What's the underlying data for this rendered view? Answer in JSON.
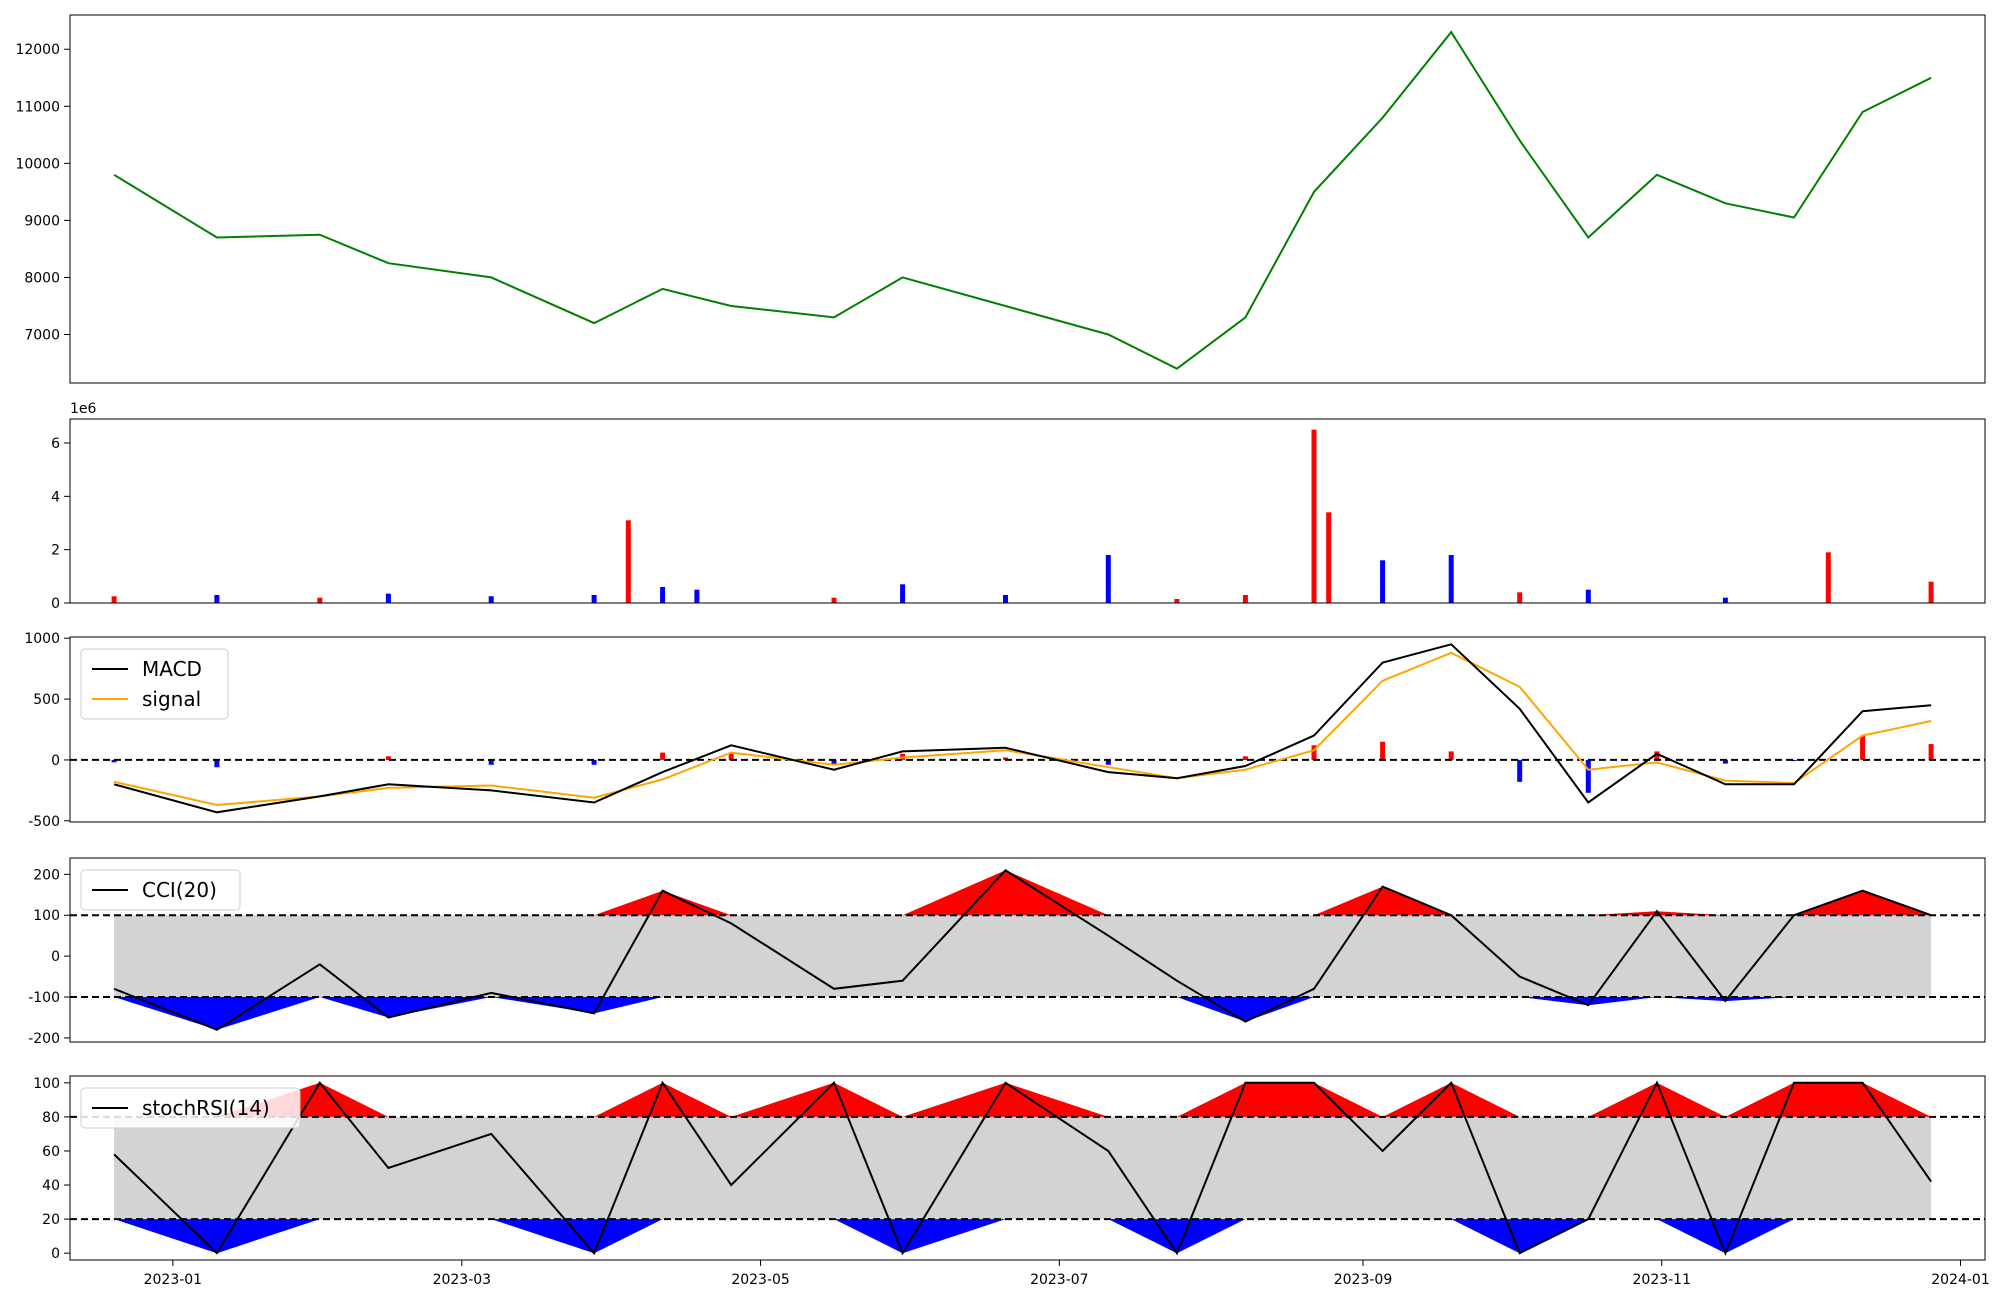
{
  "x_ticks": [
    "2023-01",
    "2023-03",
    "2023-05",
    "2023-07",
    "2023-09",
    "2023-11",
    "2024-01"
  ],
  "colors": {
    "up": "#ff0000",
    "down": "#0000ff",
    "price": "#008000",
    "signal": "#ffa500",
    "band": "#d3d3d3"
  },
  "chart_data": [
    {
      "type": "line",
      "panel": "price",
      "ylim": [
        6150,
        12600
      ],
      "yticks": [
        "7000",
        "8000",
        "9000",
        "10000",
        "11000",
        "12000"
      ],
      "x": [
        "2022-12-20",
        "2023-01-10",
        "2023-01-31",
        "2023-02-14",
        "2023-03-07",
        "2023-03-28",
        "2023-04-11",
        "2023-04-25",
        "2023-05-16",
        "2023-05-30",
        "2023-06-20",
        "2023-07-11",
        "2023-07-25",
        "2023-08-08",
        "2023-08-22",
        "2023-09-05",
        "2023-09-19",
        "2023-10-03",
        "2023-10-17",
        "2023-10-31",
        "2023-11-14",
        "2023-11-28",
        "2023-12-12",
        "2023-12-26"
      ],
      "values": [
        9800,
        8700,
        8750,
        8250,
        8000,
        7200,
        7800,
        7500,
        7300,
        8000,
        7500,
        7000,
        6400,
        7300,
        9500,
        10800,
        12300,
        10400,
        8700,
        9800,
        9300,
        9050,
        10900,
        11500
      ]
    },
    {
      "type": "bar",
      "panel": "volume",
      "exponent_label": "1e6",
      "ylim": [
        0,
        6.9
      ],
      "yticks": [
        "0",
        "2",
        "4",
        "6"
      ],
      "x": [
        "2022-12-20",
        "2023-01-10",
        "2023-01-31",
        "2023-02-14",
        "2023-03-07",
        "2023-03-28",
        "2023-04-04",
        "2023-04-11",
        "2023-04-18",
        "2023-05-16",
        "2023-05-30",
        "2023-06-20",
        "2023-07-11",
        "2023-07-25",
        "2023-08-08",
        "2023-08-22",
        "2023-08-25",
        "2023-09-05",
        "2023-09-19",
        "2023-10-03",
        "2023-10-17",
        "2023-11-14",
        "2023-12-05",
        "2023-12-26"
      ],
      "values": [
        0.25,
        0.3,
        0.2,
        0.35,
        0.25,
        0.3,
        3.1,
        0.6,
        0.5,
        0.2,
        0.7,
        0.3,
        1.8,
        0.15,
        0.3,
        6.5,
        3.4,
        1.6,
        1.8,
        0.4,
        0.5,
        0.2,
        1.9,
        0.8
      ]
    },
    {
      "type": "line",
      "panel": "macd",
      "ylim": [
        -510,
        1010
      ],
      "yticks": [
        "-500",
        "0",
        "500",
        "1000"
      ],
      "series": [
        {
          "name": "MACD",
          "color": "#000000",
          "values": [
            -200,
            -430,
            -300,
            -200,
            -250,
            -350,
            -100,
            120,
            -80,
            70,
            100,
            -100,
            -150,
            -50,
            200,
            800,
            950,
            420,
            -350,
            50,
            -200,
            -200,
            400,
            450
          ]
        },
        {
          "name": "signal",
          "color": "#ffa500",
          "values": [
            -180,
            -370,
            -300,
            -230,
            -210,
            -310,
            -160,
            60,
            -40,
            20,
            80,
            -60,
            -150,
            -80,
            80,
            650,
            880,
            600,
            -80,
            -20,
            -170,
            -190,
            200,
            320
          ]
        }
      ],
      "zero_line": 0
    },
    {
      "type": "line",
      "panel": "cci",
      "ylim": [
        -210,
        240
      ],
      "yticks": [
        "-200",
        "-100",
        "0",
        "100",
        "200"
      ],
      "series": [
        {
          "name": "CCI(20)",
          "color": "#000000",
          "values": [
            -80,
            -180,
            -20,
            -150,
            -90,
            -140,
            160,
            80,
            -80,
            -60,
            210,
            50,
            -60,
            -160,
            -80,
            170,
            100,
            -50,
            -120,
            110,
            -110,
            100,
            160,
            100
          ]
        }
      ],
      "thresholds": [
        100,
        -100
      ]
    },
    {
      "type": "line",
      "panel": "stochrsi",
      "ylim": [
        -4,
        104
      ],
      "yticks": [
        "0",
        "20",
        "40",
        "60",
        "80",
        "100"
      ],
      "series": [
        {
          "name": "stochRSI(14)",
          "color": "#000000",
          "values": [
            58,
            0,
            100,
            50,
            70,
            0,
            100,
            40,
            100,
            0,
            100,
            60,
            0,
            100,
            100,
            60,
            100,
            0,
            20,
            100,
            0,
            100,
            100,
            42
          ]
        }
      ],
      "thresholds": [
        80,
        20
      ]
    }
  ]
}
